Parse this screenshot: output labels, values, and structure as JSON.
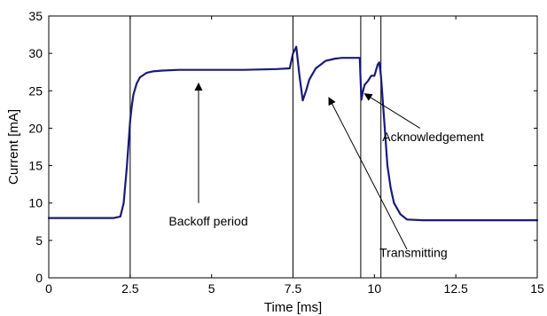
{
  "chart_data": {
    "type": "line",
    "title": "",
    "xlabel": "Time [ms]",
    "ylabel": "Current [mA]",
    "xlim": [
      0,
      15
    ],
    "ylim": [
      0,
      35
    ],
    "xticks": [
      0,
      2.5,
      5,
      7.5,
      10,
      12.5,
      15
    ],
    "xtick_labels": [
      "0",
      "2.5",
      "5",
      "7.5",
      "10",
      "12.5",
      "15"
    ],
    "yticks": [
      0,
      5,
      10,
      15,
      20,
      25,
      30,
      35
    ],
    "ytick_labels": [
      "0",
      "5",
      "10",
      "15",
      "20",
      "25",
      "30",
      "35"
    ],
    "grid": false,
    "line_color": "#1a1a7a",
    "series": [
      {
        "x": [
          0,
          0.5,
          1.0,
          1.5,
          2.0,
          2.2,
          2.3,
          2.4,
          2.5,
          2.55,
          2.6,
          2.7,
          2.8,
          3.0,
          3.2,
          3.5,
          4.0,
          5.0,
          6.0,
          7.0,
          7.4,
          7.5,
          7.6,
          7.7,
          7.8,
          7.9,
          8.0,
          8.2,
          8.5,
          8.8,
          9.0,
          9.3,
          9.55,
          9.6,
          9.65,
          9.7,
          9.8,
          9.9,
          10.0,
          10.1,
          10.15,
          10.2,
          10.3,
          10.4,
          10.5,
          10.6,
          10.8,
          11.0,
          11.5,
          12.0,
          13.0,
          14.0,
          15.0
        ],
        "y": [
          8.0,
          8.0,
          8.0,
          8.0,
          8.0,
          8.2,
          10.0,
          15.0,
          21.0,
          23.0,
          24.5,
          26.0,
          26.8,
          27.4,
          27.6,
          27.7,
          27.8,
          27.8,
          27.8,
          27.9,
          28.0,
          30.0,
          30.9,
          27.0,
          23.7,
          25.0,
          26.5,
          28.0,
          29.0,
          29.3,
          29.4,
          29.4,
          29.4,
          23.8,
          25.0,
          25.8,
          26.3,
          27.0,
          27.0,
          28.5,
          28.8,
          27.0,
          21.0,
          15.0,
          12.0,
          10.0,
          8.5,
          7.8,
          7.7,
          7.7,
          7.7,
          7.7,
          7.7
        ]
      }
    ],
    "markers": [
      2.5,
      7.5,
      9.58,
      10.2
    ],
    "annotations": [
      {
        "text": "Backoff period",
        "text_x": 4.9,
        "text_y": 7.0,
        "arrow_from": [
          4.6,
          10.0
        ],
        "arrow_to": [
          4.6,
          26.0
        ]
      },
      {
        "text": "Transmitting",
        "text_x": 11.2,
        "text_y": 2.8,
        "arrow_from": [
          11.0,
          3.8
        ],
        "arrow_to": [
          8.6,
          24.1
        ]
      },
      {
        "text": "Acknowledgement",
        "text_x": 11.8,
        "text_y": 18.3,
        "arrow_from": [
          11.4,
          20.0
        ],
        "arrow_to": [
          9.7,
          24.6
        ]
      }
    ]
  }
}
